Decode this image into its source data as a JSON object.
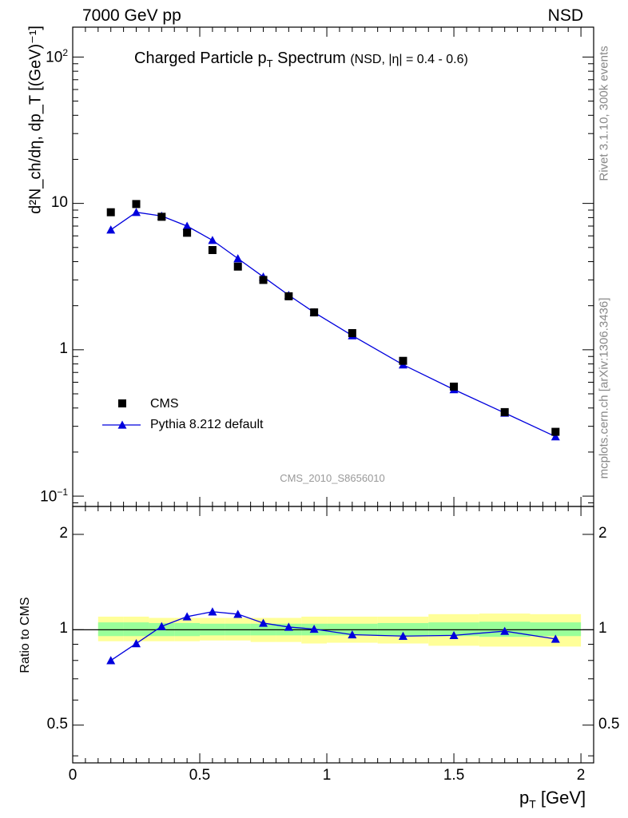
{
  "header": {
    "left": "7000 GeV pp",
    "right": "NSD"
  },
  "side_text": {
    "rivet": "Rivet 3.1.10,  300k events",
    "site": "mcplots.cern.ch [arXiv:1306.3436]"
  },
  "chart_data": [
    {
      "type": "scatter",
      "title_main": "Charged Particle p",
      "title_sub": "T",
      "title_main2": " Spectrum",
      "title_extra": "(NSD, |η| = 0.4 - 0.6)",
      "ylabel": "d²N_ch/dη, dp_T [(GeV)⁻¹]",
      "yscale": "log",
      "ylim": [
        0.085,
        160
      ],
      "xlim": [
        0,
        2.05
      ],
      "y_ticks": [
        {
          "v": 0.1,
          "base": "10",
          "exp": "−1"
        },
        {
          "v": 1,
          "base": "1",
          "exp": ""
        },
        {
          "v": 10,
          "base": "10",
          "exp": ""
        },
        {
          "v": 100,
          "base": "10",
          "exp": "2"
        }
      ],
      "watermark": "CMS_2010_S8656010",
      "legend": {
        "position": "lower-left",
        "entries": [
          "CMS",
          "Pythia 8.212 default"
        ]
      },
      "series": [
        {
          "name": "CMS",
          "style": "marker",
          "color": "#000000",
          "x": [
            0.15,
            0.25,
            0.35,
            0.45,
            0.55,
            0.65,
            0.75,
            0.85,
            0.95,
            1.1,
            1.3,
            1.5,
            1.7,
            1.9
          ],
          "y": [
            8.7,
            9.9,
            8.1,
            6.3,
            4.8,
            3.7,
            3.0,
            2.32,
            1.8,
            1.3,
            0.84,
            0.56,
            0.375,
            0.275
          ]
        },
        {
          "name": "Pythia 8.212 default",
          "style": "line-marker",
          "color": "#0000dd",
          "x": [
            0.15,
            0.25,
            0.35,
            0.45,
            0.55,
            0.65,
            0.75,
            0.85,
            0.95,
            1.1,
            1.3,
            1.5,
            1.7,
            1.9
          ],
          "y": [
            6.6,
            8.7,
            8.2,
            7.0,
            5.6,
            4.2,
            3.15,
            2.36,
            1.8,
            1.25,
            0.79,
            0.535,
            0.37,
            0.255
          ]
        }
      ]
    },
    {
      "type": "line",
      "ylabel": "Ratio to CMS",
      "ylim": [
        0.38,
        2.45
      ],
      "xlim": [
        0,
        2.05
      ],
      "yscale": "log",
      "y_ticks": [
        0.5,
        1,
        2
      ],
      "x_ticks": [
        0,
        0.5,
        1,
        1.5,
        2
      ],
      "xlabel_main": "p",
      "xlabel_sub": "T",
      "xlabel_unit": " [GeV]",
      "reference": 1,
      "band_bins": [
        {
          "x0": 0.1,
          "x1": 0.2,
          "g": [
            0.955,
            1.055
          ],
          "y": [
            0.92,
            1.1
          ]
        },
        {
          "x0": 0.2,
          "x1": 0.3,
          "g": [
            0.955,
            1.055
          ],
          "y": [
            0.92,
            1.1
          ]
        },
        {
          "x0": 0.3,
          "x1": 0.4,
          "g": [
            0.955,
            1.05
          ],
          "y": [
            0.92,
            1.09
          ]
        },
        {
          "x0": 0.4,
          "x1": 0.5,
          "g": [
            0.955,
            1.05
          ],
          "y": [
            0.92,
            1.09
          ]
        },
        {
          "x0": 0.5,
          "x1": 0.6,
          "g": [
            0.96,
            1.045
          ],
          "y": [
            0.925,
            1.09
          ]
        },
        {
          "x0": 0.6,
          "x1": 0.7,
          "g": [
            0.96,
            1.045
          ],
          "y": [
            0.925,
            1.09
          ]
        },
        {
          "x0": 0.7,
          "x1": 0.8,
          "g": [
            0.96,
            1.045
          ],
          "y": [
            0.915,
            1.09
          ]
        },
        {
          "x0": 0.8,
          "x1": 0.9,
          "g": [
            0.96,
            1.045
          ],
          "y": [
            0.915,
            1.09
          ]
        },
        {
          "x0": 0.9,
          "x1": 1.0,
          "g": [
            0.96,
            1.045
          ],
          "y": [
            0.905,
            1.1
          ]
        },
        {
          "x0": 1.0,
          "x1": 1.2,
          "g": [
            0.96,
            1.045
          ],
          "y": [
            0.91,
            1.1
          ]
        },
        {
          "x0": 1.2,
          "x1": 1.4,
          "g": [
            0.955,
            1.05
          ],
          "y": [
            0.905,
            1.1
          ]
        },
        {
          "x0": 1.4,
          "x1": 1.6,
          "g": [
            0.955,
            1.055
          ],
          "y": [
            0.89,
            1.12
          ]
        },
        {
          "x0": 1.6,
          "x1": 1.8,
          "g": [
            0.95,
            1.06
          ],
          "y": [
            0.885,
            1.125
          ]
        },
        {
          "x0": 1.8,
          "x1": 2.0,
          "g": [
            0.955,
            1.055
          ],
          "y": [
            0.885,
            1.12
          ]
        }
      ],
      "series": [
        {
          "name": "Pythia 8.212 default",
          "color": "#0000dd",
          "x": [
            0.15,
            0.25,
            0.35,
            0.45,
            0.55,
            0.65,
            0.75,
            0.85,
            0.95,
            1.1,
            1.3,
            1.5,
            1.7,
            1.9
          ],
          "y": [
            0.8,
            0.905,
            1.025,
            1.1,
            1.14,
            1.12,
            1.05,
            1.02,
            1.005,
            0.965,
            0.955,
            0.96,
            0.99,
            0.935
          ]
        }
      ]
    }
  ]
}
